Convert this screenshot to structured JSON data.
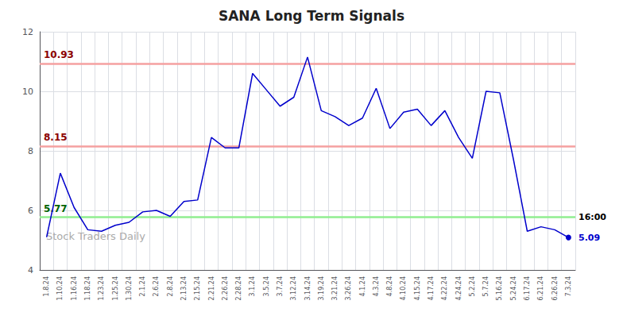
{
  "chart_data": {
    "type": "line",
    "title": "SANA Long Term Signals",
    "categories": [
      "1.8.24",
      "1.10.24",
      "1.16.24",
      "1.18.24",
      "1.23.24",
      "1.25.24",
      "1.30.24",
      "2.1.24",
      "2.6.24",
      "2.8.24",
      "2.13.24",
      "2.15.24",
      "2.21.24",
      "2.26.24",
      "2.28.24",
      "3.1.24",
      "3.5.24",
      "3.7.24",
      "3.12.24",
      "3.14.24",
      "3.19.24",
      "3.21.24",
      "3.26.24",
      "4.1.24",
      "4.3.24",
      "4.8.24",
      "4.10.24",
      "4.15.24",
      "4.17.24",
      "4.22.24",
      "4.24.24",
      "5.2.24",
      "5.7.24",
      "5.16.24",
      "5.24.24",
      "6.17.24",
      "6.21.24",
      "6.26.24",
      "7.3.24"
    ],
    "values": [
      5.1,
      7.25,
      6.1,
      5.35,
      5.3,
      5.5,
      5.6,
      5.95,
      6.0,
      5.8,
      6.3,
      6.35,
      8.45,
      8.1,
      8.1,
      10.6,
      10.05,
      9.5,
      9.8,
      11.15,
      9.35,
      9.15,
      8.85,
      9.1,
      10.1,
      8.75,
      9.3,
      9.4,
      8.85,
      9.35,
      8.45,
      7.75,
      10.0,
      9.95,
      7.7,
      5.3,
      5.45,
      5.35,
      5.09
    ],
    "color": "#0000cc",
    "ylim": [
      4,
      12
    ],
    "yticks": [
      4,
      6,
      8,
      10,
      12
    ],
    "grid": true,
    "hlines": [
      {
        "value": 10.93,
        "label": "10.93",
        "color": "#f5a0a0",
        "label_color": "#8b0000"
      },
      {
        "value": 8.15,
        "label": "8.15",
        "color": "#f5a0a0",
        "label_color": "#8b0000"
      },
      {
        "value": 5.77,
        "label": "5.77",
        "color": "#90ee90",
        "label_color": "#006400"
      }
    ],
    "annotations": [
      {
        "text": "16:00",
        "y": 5.77,
        "color": "#000000"
      },
      {
        "text": "5.09",
        "y": 5.09,
        "color": "#0000cc"
      }
    ],
    "watermark": {
      "text": "Stock Traders Daily",
      "color": "#aaaaaa"
    }
  }
}
